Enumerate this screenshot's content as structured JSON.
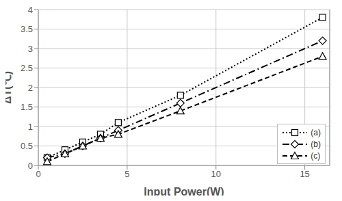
{
  "chart_data": {
    "type": "line",
    "x_label": "Input Power(W)",
    "y_label": "ΔT(℃)",
    "x": [
      0.5,
      1.5,
      2.5,
      3.5,
      4.5,
      8,
      16
    ],
    "series": [
      {
        "name": "(a)",
        "color": "#000000",
        "marker": "square",
        "line_style": "dotted",
        "values": [
          0.2,
          0.4,
          0.6,
          0.8,
          1.1,
          1.8,
          3.8
        ]
      },
      {
        "name": "(b)",
        "color": "#000000",
        "marker": "diamond",
        "line_style": "dashdot",
        "values": [
          0.2,
          0.3,
          0.5,
          0.7,
          0.9,
          1.6,
          3.2
        ]
      },
      {
        "name": "(c)",
        "color": "#000000",
        "marker": "triangle",
        "line_style": "dashed",
        "values": [
          0.1,
          0.3,
          0.5,
          0.7,
          0.8,
          1.4,
          2.8
        ]
      }
    ],
    "xlim": [
      0,
      16.4
    ],
    "ylim": [
      0,
      4
    ],
    "xticks": [
      0,
      5,
      10,
      15
    ],
    "yticks": [
      0,
      0.5,
      1,
      1.5,
      2,
      2.5,
      3,
      3.5,
      4
    ],
    "grid": true,
    "legend": "lower right"
  }
}
